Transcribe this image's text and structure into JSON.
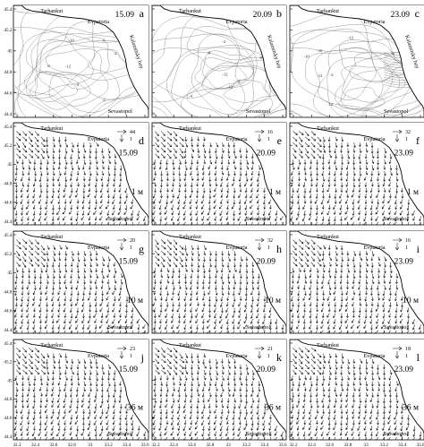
{
  "figure": {
    "rows": [
      {
        "row_id": "sea-level",
        "panels": [
          {
            "letter": "a",
            "date": "15.09",
            "type": "contour",
            "seed": 11
          },
          {
            "letter": "b",
            "date": "20.09",
            "type": "contour",
            "seed": 23
          },
          {
            "letter": "c",
            "date": "23.09",
            "type": "contour",
            "seed": 37
          }
        ]
      },
      {
        "row_id": "depth-1m",
        "depth_label": "1 м",
        "panels": [
          {
            "letter": "d",
            "date": "15.09",
            "type": "vector",
            "scale_value": "44",
            "scale_unit": "1",
            "seed": 5
          },
          {
            "letter": "e",
            "date": "20.09",
            "type": "vector",
            "scale_value": "16",
            "scale_unit": "1",
            "seed": 17
          },
          {
            "letter": "f",
            "date": "23.09",
            "type": "vector",
            "scale_value": "32",
            "scale_unit": "1",
            "seed": 29
          }
        ]
      },
      {
        "row_id": "depth-10m",
        "depth_label": "10 м",
        "panels": [
          {
            "letter": "g",
            "date": "15.09",
            "type": "vector",
            "scale_value": "20",
            "scale_unit": "1",
            "seed": 41
          },
          {
            "letter": "h",
            "date": "20.09",
            "type": "vector",
            "scale_value": "32",
            "scale_unit": "1",
            "seed": 53
          },
          {
            "letter": "i",
            "date": "23.09",
            "type": "vector",
            "scale_value": "16",
            "scale_unit": "1",
            "seed": 67
          }
        ]
      },
      {
        "row_id": "depth-36m",
        "depth_label": "36 м",
        "panels": [
          {
            "letter": "j",
            "date": "15.09",
            "type": "vector",
            "scale_value": "23",
            "scale_unit": "1",
            "seed": 71
          },
          {
            "letter": "k",
            "date": "20.09",
            "type": "vector",
            "scale_value": "21",
            "scale_unit": "1",
            "seed": 83
          },
          {
            "letter": "l",
            "date": "23.09",
            "type": "vector",
            "scale_value": "18",
            "scale_unit": "1",
            "seed": 97
          }
        ]
      }
    ],
    "places": {
      "tarhankut": "Tarhankut",
      "evpatoria": "Evpatoria",
      "kalamitsky": "Kalamitsky bay",
      "sevastopol": "Sevastopol"
    },
    "y_ticks": [
      "45.4",
      "45.2",
      "45",
      "44.8",
      "44.6",
      "44.4"
    ],
    "x_ticks": [
      "32.2",
      "32.4",
      "32.6",
      "32.8",
      "33",
      "33.2",
      "33.4",
      "33.6"
    ],
    "contour_labels": [
      "-2",
      "-4",
      "-6",
      "-8",
      "-10",
      "-12"
    ]
  }
}
